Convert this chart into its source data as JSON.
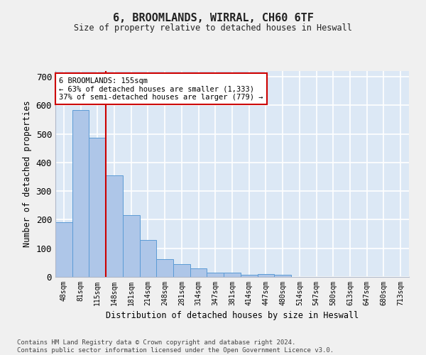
{
  "title": "6, BROOMLANDS, WIRRAL, CH60 6TF",
  "subtitle": "Size of property relative to detached houses in Heswall",
  "xlabel": "Distribution of detached houses by size in Heswall",
  "ylabel": "Number of detached properties",
  "categories": [
    "48sqm",
    "81sqm",
    "115sqm",
    "148sqm",
    "181sqm",
    "214sqm",
    "248sqm",
    "281sqm",
    "314sqm",
    "347sqm",
    "381sqm",
    "414sqm",
    "447sqm",
    "480sqm",
    "514sqm",
    "547sqm",
    "580sqm",
    "613sqm",
    "647sqm",
    "680sqm",
    "713sqm"
  ],
  "values": [
    192,
    583,
    486,
    355,
    215,
    130,
    63,
    44,
    30,
    15,
    15,
    8,
    10,
    8,
    0,
    0,
    0,
    0,
    0,
    0,
    0
  ],
  "bar_color": "#aec6e8",
  "bar_edge_color": "#5b9bd5",
  "vline_x_index": 3,
  "vline_color": "#cc0000",
  "annotation_text": "6 BROOMLANDS: 155sqm\n← 63% of detached houses are smaller (1,333)\n37% of semi-detached houses are larger (779) →",
  "annotation_box_color": "#cc0000",
  "ylim": [
    0,
    720
  ],
  "yticks": [
    0,
    100,
    200,
    300,
    400,
    500,
    600,
    700
  ],
  "background_color": "#dce8f5",
  "grid_color": "#ffffff",
  "fig_background": "#f0f0f0",
  "footer_line1": "Contains HM Land Registry data © Crown copyright and database right 2024.",
  "footer_line2": "Contains public sector information licensed under the Open Government Licence v3.0."
}
